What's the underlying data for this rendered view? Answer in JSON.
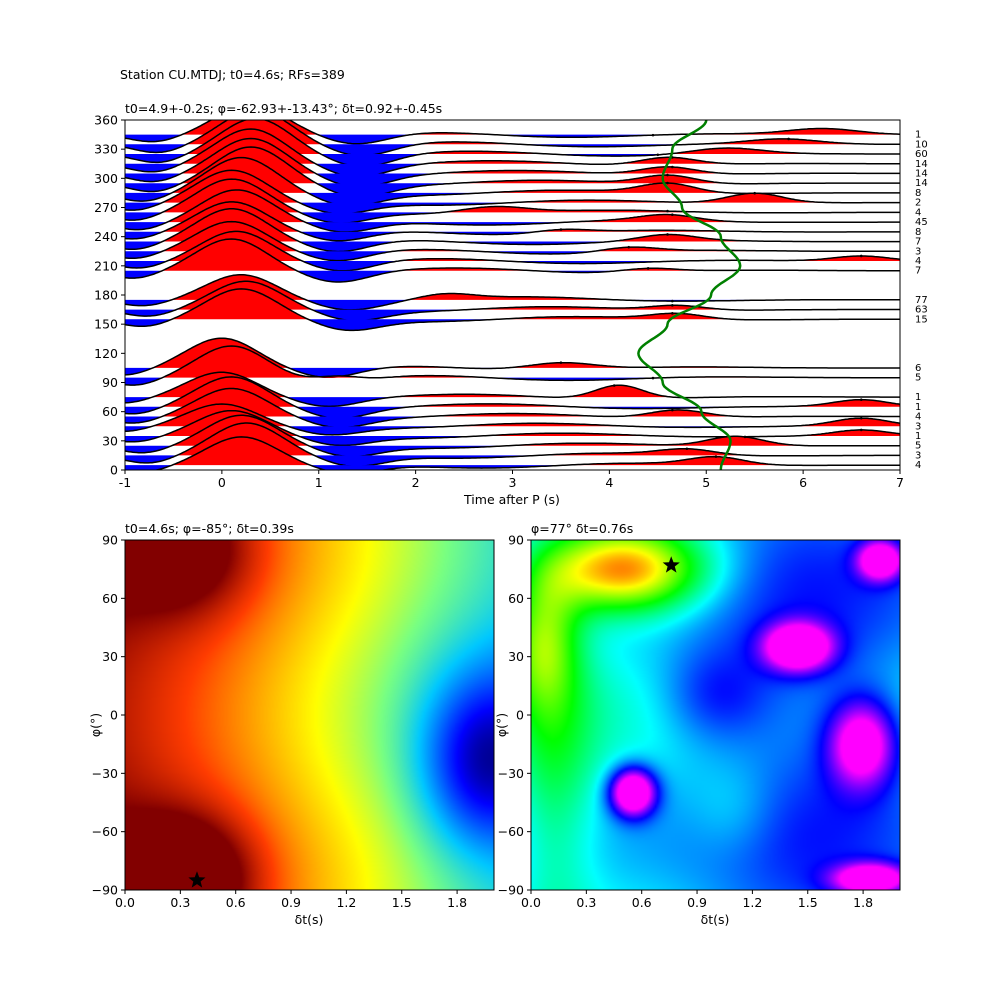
{
  "figure": {
    "suptitle": "Station CU.MTDJ; t0=4.6s; RFs=389"
  },
  "chart_data": [
    {
      "type": "line",
      "title": "t0=4.9+-0.2s; φ=-62.93+-13.43°; δt=0.92+-0.45s",
      "xlabel": "Time after P (s)",
      "ylabel": "",
      "xlim": [
        -1,
        7
      ],
      "ylim": [
        0,
        360
      ],
      "xticks": [
        -1,
        0,
        1,
        2,
        3,
        4,
        5,
        6,
        7
      ],
      "yticks": [
        0,
        30,
        60,
        90,
        120,
        150,
        180,
        210,
        240,
        270,
        300,
        330,
        360
      ],
      "fill_colors": {
        "positive": "#ff0000",
        "negative": "#0000ff"
      },
      "traces": [
        {
          "baz": 5,
          "count": 4,
          "amp": 28,
          "peak": 0.2,
          "extra": [
            {
              "t": 5.1,
              "a": 8,
              "w": 0.4
            }
          ],
          "dot": 5.1
        },
        {
          "baz": 15,
          "count": 3,
          "amp": 32,
          "peak": 0.25,
          "extra": [
            {
              "t": 4.8,
              "a": 6,
              "w": 0.4
            }
          ],
          "dot": 4.8
        },
        {
          "baz": 25,
          "count": 5,
          "amp": 30,
          "peak": 0.2,
          "extra": [
            {
              "t": 5.3,
              "a": 10,
              "w": 0.4
            }
          ],
          "dot": 5.4
        },
        {
          "baz": 35,
          "count": 1,
          "amp": 25,
          "peak": 0.1,
          "extra": [
            {
              "t": 6.6,
              "a": 6,
              "w": 0.4
            }
          ],
          "dot": 6.6
        },
        {
          "baz": 45,
          "count": 3,
          "amp": 22,
          "peak": 0.0,
          "extra": [
            {
              "t": 6.6,
              "a": 8,
              "w": 0.4
            }
          ],
          "dot": 6.6
        },
        {
          "baz": 55,
          "count": 4,
          "amp": 28,
          "peak": 0.1,
          "extra": [
            {
              "t": 4.7,
              "a": 8,
              "w": 0.4
            }
          ],
          "dot": 4.65
        },
        {
          "baz": 65,
          "count": 1,
          "amp": 30,
          "peak": 0.1,
          "extra": [
            {
              "t": 6.6,
              "a": 7,
              "w": 0.4
            }
          ],
          "dot": 6.6
        },
        {
          "baz": 75,
          "count": 1,
          "amp": 25,
          "peak": 0.0,
          "extra": [
            {
              "t": 4.1,
              "a": 14,
              "w": 0.35
            }
          ],
          "dot": 4.05
        },
        {
          "baz": 95,
          "count": 5,
          "amp": 32,
          "peak": 0.1,
          "extra": [
            {
              "t": 1.2,
              "a": 12,
              "w": 0.35
            }
          ],
          "dot": 4.45
        },
        {
          "baz": 105,
          "count": 6,
          "amp": 30,
          "peak": 0.0,
          "extra": [
            {
              "t": 3.5,
              "a": 8,
              "w": 0.5
            }
          ],
          "dot": 3.5
        },
        {
          "baz": 155,
          "count": 15,
          "amp": 30,
          "peak": 0.2,
          "extra": [
            {
              "t": 4.7,
              "a": 6,
              "w": 0.4
            }
          ],
          "dot": 4.65
        },
        {
          "baz": 165,
          "count": 63,
          "amp": 28,
          "peak": 0.25,
          "extra": [
            {
              "t": 4.7,
              "a": 5,
              "w": 0.4
            }
          ],
          "dot": 4.65
        },
        {
          "baz": 175,
          "count": 77,
          "amp": 25,
          "peak": 0.2,
          "extra": [
            {
              "t": 2.3,
              "a": 6,
              "w": 0.4
            }
          ],
          "dot": 4.65
        },
        {
          "baz": 205,
          "count": 7,
          "amp": 32,
          "peak": 0.1,
          "extra": [
            {
              "t": 4.4,
              "a": 4,
              "w": 0.4
            }
          ],
          "dot": 4.4
        },
        {
          "baz": 215,
          "count": 4,
          "amp": 30,
          "peak": 0.15,
          "extra": [
            {
              "t": 6.6,
              "a": 5,
              "w": 0.4
            }
          ],
          "dot": 6.6
        },
        {
          "baz": 225,
          "count": 3,
          "amp": 30,
          "peak": 0.1,
          "extra": [
            {
              "t": 4.2,
              "a": 5,
              "w": 0.4
            }
          ],
          "dot": 4.2
        },
        {
          "baz": 235,
          "count": 7,
          "amp": 33,
          "peak": 0.1,
          "extra": [
            {
              "t": 4.6,
              "a": 6,
              "w": 0.4
            }
          ],
          "dot": 4.6
        },
        {
          "baz": 245,
          "count": 8,
          "amp": 30,
          "peak": 0.1,
          "extra": [
            {
              "t": 3.5,
              "a": 4,
              "w": 0.4
            }
          ],
          "dot": 3.5
        },
        {
          "baz": 255,
          "count": 45,
          "amp": 32,
          "peak": 0.15,
          "extra": [
            {
              "t": 4.6,
              "a": 6,
              "w": 0.4
            }
          ],
          "dot": 4.65
        },
        {
          "baz": 265,
          "count": 4,
          "amp": 33,
          "peak": 0.1,
          "extra": [
            {
              "t": 2.8,
              "a": 8,
              "w": 0.5
            }
          ],
          "dot": 4.6
        },
        {
          "baz": 275,
          "count": 2,
          "amp": 32,
          "peak": 0.1,
          "extra": [
            {
              "t": 5.5,
              "a": 10,
              "w": 0.4
            }
          ],
          "dot": 5.5
        },
        {
          "baz": 285,
          "count": 8,
          "amp": 35,
          "peak": 0.2,
          "extra": [
            {
              "t": 4.6,
              "a": 10,
              "w": 0.4
            }
          ],
          "dot": 4.6
        },
        {
          "baz": 295,
          "count": 14,
          "amp": 36,
          "peak": 0.3,
          "extra": [
            {
              "t": 4.6,
              "a": 9,
              "w": 0.4
            }
          ],
          "dot": 4.6
        },
        {
          "baz": 305,
          "count": 14,
          "amp": 35,
          "peak": 0.3,
          "extra": [
            {
              "t": 4.6,
              "a": 8,
              "w": 0.4
            }
          ],
          "dot": 4.65
        },
        {
          "baz": 315,
          "count": 14,
          "amp": 35,
          "peak": 0.3,
          "extra": [
            {
              "t": 4.6,
              "a": 8,
              "w": 0.4
            }
          ],
          "dot": 4.65
        },
        {
          "baz": 325,
          "count": 60,
          "amp": 36,
          "peak": 0.35,
          "extra": [
            {
              "t": 5.2,
              "a": 6,
              "w": 0.5
            }
          ],
          "dot": 4.5
        },
        {
          "baz": 335,
          "count": 10,
          "amp": 35,
          "peak": 0.35,
          "extra": [
            {
              "t": 5.8,
              "a": 5,
              "w": 0.5
            }
          ],
          "dot": 5.85
        },
        {
          "baz": 345,
          "count": 1,
          "amp": 30,
          "peak": 0.3,
          "extra": [
            {
              "t": 6.2,
              "a": 6,
              "w": 0.5
            }
          ],
          "dot": 4.45
        }
      ],
      "fast_axis_curve": {
        "color": "#008000",
        "baz": [
          0,
          30,
          60,
          90,
          120,
          150,
          180,
          210,
          240,
          270,
          300,
          330,
          360
        ],
        "time": [
          5.15,
          5.25,
          4.95,
          4.55,
          4.3,
          4.6,
          5.05,
          5.35,
          5.15,
          4.75,
          4.55,
          4.65,
          5.0
        ]
      }
    },
    {
      "type": "heatmap",
      "title": "t0=4.6s; φ=-85°; δt=0.39s",
      "xlabel": "δt(s)",
      "ylabel": "φ(°)",
      "xlim": [
        0,
        2
      ],
      "ylim": [
        -90,
        90
      ],
      "xticks": [
        "0.0",
        "0.3",
        "0.6",
        "0.9",
        "1.2",
        "1.5",
        "1.8"
      ],
      "yticks": [
        "−90",
        "−60",
        "−30",
        "0",
        "30",
        "60",
        "90"
      ],
      "colormap": "jet-like",
      "best": {
        "dt": 0.39,
        "phi": -85
      },
      "blobs": [
        {
          "x": 0.3,
          "y": -85,
          "sx": 0.35,
          "sy": 30,
          "a": 0.45
        },
        {
          "x": 0.3,
          "y": 85,
          "sx": 0.35,
          "sy": 30,
          "a": 0.3
        },
        {
          "x": 1.95,
          "y": -25,
          "sx": 0.35,
          "sy": 45,
          "a": -0.35
        }
      ]
    },
    {
      "type": "heatmap",
      "title": "φ=77° δt=0.76s",
      "xlabel": "δt(s)",
      "ylabel": "φ(°)",
      "xlim": [
        0,
        2
      ],
      "ylim": [
        -90,
        90
      ],
      "xticks": [
        "0.0",
        "0.3",
        "0.6",
        "0.9",
        "1.2",
        "1.5",
        "1.8"
      ],
      "yticks": [
        "−90",
        "−60",
        "−30",
        "0",
        "30",
        "60",
        "90"
      ],
      "colormap": "hsv-like",
      "best": {
        "dt": 0.76,
        "phi": 77
      },
      "blobs": [
        {
          "x": 0.1,
          "y": -30,
          "sx": 0.25,
          "sy": 90,
          "a": 0.2
        },
        {
          "x": 0.5,
          "y": 75,
          "sx": 0.45,
          "sy": 22,
          "a": 0.55
        },
        {
          "x": 0.05,
          "y": 40,
          "sx": 0.2,
          "sy": 35,
          "a": 0.3
        },
        {
          "x": 1.45,
          "y": 35,
          "sx": 0.18,
          "sy": 12,
          "a": -0.55
        },
        {
          "x": 1.8,
          "y": -15,
          "sx": 0.18,
          "sy": 22,
          "a": -0.45
        },
        {
          "x": 0.55,
          "y": -40,
          "sx": 0.12,
          "sy": 12,
          "a": -0.6
        },
        {
          "x": 1.85,
          "y": -85,
          "sx": 0.2,
          "sy": 8,
          "a": -0.5
        },
        {
          "x": 1.9,
          "y": 80,
          "sx": 0.12,
          "sy": 10,
          "a": -0.5
        },
        {
          "x": 1.1,
          "y": -50,
          "sx": 0.25,
          "sy": 25,
          "a": 0.08
        },
        {
          "x": 1.0,
          "y": 10,
          "sx": 0.3,
          "sy": 25,
          "a": -0.15
        }
      ]
    }
  ]
}
